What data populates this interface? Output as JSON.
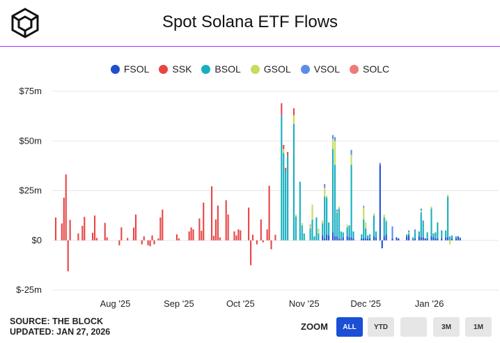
{
  "title": "Spot Solana ETF Flows",
  "logo_icon": "the-block-cube-logo",
  "legend": [
    {
      "name": "FSOL",
      "color": "#1f4fd0"
    },
    {
      "name": "SSK",
      "color": "#e84545"
    },
    {
      "name": "BSOL",
      "color": "#18aebf"
    },
    {
      "name": "GSOL",
      "color": "#c6dc5a"
    },
    {
      "name": "VSOL",
      "color": "#5b8de8"
    },
    {
      "name": "SOLC",
      "color": "#f07a7a"
    }
  ],
  "source": "SOURCE: THE BLOCK",
  "updated": "UPDATED: JAN 27, 2026",
  "zoom": {
    "label": "ZOOM",
    "buttons": [
      {
        "label": "ALL",
        "active": true
      },
      {
        "label": "YTD",
        "active": false
      },
      {
        "label": "",
        "active": false
      },
      {
        "label": "3M",
        "active": false
      },
      {
        "label": "1M",
        "active": false
      }
    ]
  },
  "chart_data": {
    "type": "bar",
    "stacked": true,
    "title": "Spot Solana ETF Flows",
    "ylabel": "",
    "ylim": [
      -25,
      75
    ],
    "yticks": [
      -25,
      0,
      25,
      50,
      75
    ],
    "ytick_labels": [
      "$-25m",
      "$0",
      "$25m",
      "$50m",
      "$75m"
    ],
    "x_start_day": 0,
    "x_end_day": 212,
    "x_ticks": [
      {
        "day": 29,
        "label": "Aug '25"
      },
      {
        "day": 60,
        "label": "Sep '25"
      },
      {
        "day": 90,
        "label": "Oct '25"
      },
      {
        "day": 121,
        "label": "Nov '25"
      },
      {
        "day": 151,
        "label": "Dec '25"
      },
      {
        "day": 182,
        "label": "Jan '26"
      }
    ],
    "series_names": [
      "FSOL",
      "SSK",
      "BSOL",
      "GSOL",
      "VSOL",
      "SOLC"
    ],
    "bars": [
      {
        "day": 0,
        "SSK": 11.5
      },
      {
        "day": 3,
        "SSK": 8.5
      },
      {
        "day": 4,
        "SSK": 21.5
      },
      {
        "day": 5,
        "SSK": 33.2
      },
      {
        "day": 6,
        "SSK": -15.6
      },
      {
        "day": 7,
        "SSK": 10.3
      },
      {
        "day": 11,
        "SSK": 3.5
      },
      {
        "day": 13,
        "SSK": 7.3
      },
      {
        "day": 14,
        "SSK": 11.8
      },
      {
        "day": 18,
        "SSK": 3.8
      },
      {
        "day": 19,
        "SSK": 12.5
      },
      {
        "day": 20,
        "SSK": 1.2
      },
      {
        "day": 24,
        "SSK": 8.8
      },
      {
        "day": 25,
        "SSK": 1.5
      },
      {
        "day": 31,
        "SSK": -2.5
      },
      {
        "day": 32,
        "SSK": 6.5
      },
      {
        "day": 35,
        "SSK": 1.2
      },
      {
        "day": 38,
        "SSK": 6.4
      },
      {
        "day": 39,
        "SSK": 13.0
      },
      {
        "day": 42,
        "SSK": -2.0
      },
      {
        "day": 43,
        "SSK": 2.0
      },
      {
        "day": 45,
        "SSK": -2.5
      },
      {
        "day": 46,
        "SSK": -3.0
      },
      {
        "day": 47,
        "SSK": 2.5
      },
      {
        "day": 48,
        "SSK": -2.0
      },
      {
        "day": 50,
        "SSK": 1.0
      },
      {
        "day": 51,
        "SSK": 11.5
      },
      {
        "day": 52,
        "SSK": 15.5
      },
      {
        "day": 59,
        "SSK": 3.0
      },
      {
        "day": 60,
        "SSK": 1.0
      },
      {
        "day": 65,
        "SSK": 4.5
      },
      {
        "day": 66,
        "SSK": 6.5
      },
      {
        "day": 67,
        "SSK": 5.5
      },
      {
        "day": 70,
        "SSK": 11.0
      },
      {
        "day": 71,
        "SSK": 4.8
      },
      {
        "day": 72,
        "SSK": 19.0
      },
      {
        "day": 76,
        "SSK": 27.2
      },
      {
        "day": 77,
        "SSK": 2.3
      },
      {
        "day": 78,
        "SSK": 10.5
      },
      {
        "day": 79,
        "SSK": 17.5
      },
      {
        "day": 80,
        "SSK": 1.5
      },
      {
        "day": 83,
        "SSK": 20.2
      },
      {
        "day": 84,
        "SSK": 13.0
      },
      {
        "day": 87,
        "SSK": 4.5
      },
      {
        "day": 88,
        "SSK": 2.5
      },
      {
        "day": 89,
        "SSK": 5.5
      },
      {
        "day": 90,
        "SSK": 5.0
      },
      {
        "day": 94,
        "SSK": 16.5
      },
      {
        "day": 95,
        "SSK": -12.5
      },
      {
        "day": 96,
        "SSK": 2.8
      },
      {
        "day": 98,
        "SSK": -2.0
      },
      {
        "day": 100,
        "SSK": 10.5
      },
      {
        "day": 101,
        "SSK": -1.0
      },
      {
        "day": 103,
        "SSK": 5.5
      },
      {
        "day": 104,
        "SSK": 27.5
      },
      {
        "day": 105,
        "SSK": -4.5
      },
      {
        "day": 107,
        "SSK": 2.8
      },
      {
        "day": 110,
        "SSK": 6.0,
        "BSOL": 63.0
      },
      {
        "day": 111,
        "SSK": 2.0,
        "BSOL": 44.0,
        "GSOL": 2.0
      },
      {
        "day": 112,
        "SSK": 1.5,
        "BSOL": 35.0
      },
      {
        "day": 113,
        "SSK": 2.0,
        "BSOL": 42.5
      },
      {
        "day": 116,
        "SSK": 3.5,
        "BSOL": 58.5,
        "GSOL": 4.5
      },
      {
        "day": 117,
        "BSOL": 12.0,
        "GSOL": 1.0
      },
      {
        "day": 119,
        "BSOL": 29.5
      },
      {
        "day": 120,
        "BSOL": 7.5,
        "GSOL": 1.2
      },
      {
        "day": 121,
        "BSOL": 3.5
      },
      {
        "day": 124,
        "BSOL": 6.0,
        "GSOL": 1.5,
        "SOLC": 0.5
      },
      {
        "day": 125,
        "BSOL": 10.5,
        "GSOL": 7.5
      },
      {
        "day": 126,
        "BSOL": 2.0
      },
      {
        "day": 127,
        "BSOL": 11.5
      },
      {
        "day": 128,
        "BSOL": 3.5,
        "GSOL": 2.5
      },
      {
        "day": 130,
        "FSOL": 2.5,
        "BSOL": 6.0,
        "GSOL": 1.5
      },
      {
        "day": 131,
        "FSOL": 1.0,
        "BSOL": 21.0,
        "GSOL": 4.5,
        "VSOL": 1.8
      },
      {
        "day": 132,
        "FSOL": 3.0,
        "BSOL": 18.5,
        "GSOL": 1.0
      },
      {
        "day": 133,
        "FSOL": 2.5,
        "BSOL": 6.5
      },
      {
        "day": 135,
        "FSOL": 4.0,
        "BSOL": 42.0,
        "GSOL": 5.0,
        "VSOL": 2.0
      },
      {
        "day": 136,
        "FSOL": 2.0,
        "BSOL": 36.0,
        "GSOL": 12.0,
        "VSOL": 2.0
      },
      {
        "day": 137,
        "FSOL": 2.0,
        "BSOL": 12.0,
        "GSOL": 0.5,
        "VSOL": 1.0
      },
      {
        "day": 138,
        "FSOL": 1.0,
        "BSOL": 15.0,
        "GSOL": 1.0
      },
      {
        "day": 139,
        "FSOL": 0.5,
        "BSOL": 4.0
      },
      {
        "day": 140,
        "FSOL": 1.5,
        "BSOL": 2.5
      },
      {
        "day": 142,
        "FSOL": 2.0,
        "BSOL": 4.5,
        "GSOL": 1.5
      },
      {
        "day": 143,
        "FSOL": 1.5,
        "BSOL": 6.0
      },
      {
        "day": 144,
        "FSOL": 1.5,
        "BSOL": 36.5,
        "GSOL": 5.0,
        "VSOL": 2.5
      },
      {
        "day": 145,
        "FSOL": 1.0,
        "BSOL": 3.5
      },
      {
        "day": 149,
        "FSOL": 1.0,
        "BSOL": 2.0
      },
      {
        "day": 150,
        "FSOL": 1.0,
        "BSOL": 9.5,
        "GSOL": 6.0,
        "VSOL": 0.8
      },
      {
        "day": 151,
        "FSOL": 1.0,
        "BSOL": 5.0,
        "GSOL": 3.0
      },
      {
        "day": 152,
        "FSOL": 1.0,
        "BSOL": 1.5
      },
      {
        "day": 153,
        "FSOL": 1.0,
        "BSOL": 2.0
      },
      {
        "day": 155,
        "FSOL": 2.0,
        "BSOL": 10.5,
        "GSOL": 1.0
      },
      {
        "day": 156,
        "FSOL": 1.5,
        "BSOL": 3.0
      },
      {
        "day": 158,
        "FSOL": 38.0,
        "VSOL": 1.0
      },
      {
        "day": 159,
        "FSOL": -4.0
      },
      {
        "day": 160,
        "FSOL": 2.0,
        "BSOL": 9.5,
        "GSOL": 1.5
      },
      {
        "day": 161,
        "FSOL": 3.0,
        "BSOL": 6.5,
        "GSOL": 1.0
      },
      {
        "day": 164,
        "FSOL": 1.0,
        "VSOL": 6.0
      },
      {
        "day": 166,
        "FSOL": 1.5
      },
      {
        "day": 167,
        "FSOL": 1.0
      },
      {
        "day": 171,
        "FSOL": 2.0,
        "BSOL": 1.0
      },
      {
        "day": 172,
        "FSOL": 2.5,
        "BSOL": 1.0,
        "GSOL": 0.5,
        "VSOL": 1.0
      },
      {
        "day": 174,
        "FSOL": 0.5,
        "BSOL": 1.0
      },
      {
        "day": 175,
        "FSOL": 1.0,
        "BSOL": 3.0,
        "VSOL": 1.5
      },
      {
        "day": 177,
        "FSOL": 2.0,
        "BSOL": 2.5
      },
      {
        "day": 178,
        "FSOL": 1.5,
        "BSOL": 12.5,
        "GSOL": 1.0,
        "VSOL": 1.0
      },
      {
        "day": 179,
        "FSOL": 1.5,
        "BSOL": 7.0,
        "VSOL": 1.5
      },
      {
        "day": 180,
        "FSOL": 1.0
      },
      {
        "day": 181,
        "FSOL": 1.0,
        "BSOL": 3.0
      },
      {
        "day": 183,
        "FSOL": 2.0,
        "BSOL": 14.0,
        "GSOL": 1.0
      },
      {
        "day": 184,
        "FSOL": 1.5,
        "BSOL": 2.0
      },
      {
        "day": 185,
        "FSOL": 1.0,
        "BSOL": 3.0
      },
      {
        "day": 186,
        "FSOL": 1.0,
        "BSOL": 8.0
      },
      {
        "day": 188,
        "FSOL": 1.0,
        "BSOL": 4.0
      },
      {
        "day": 190,
        "FSOL": 1.5,
        "BSOL": 3.5
      },
      {
        "day": 191,
        "FSOL": 1.5,
        "BSOL": 20.5,
        "GSOL": 1.0
      },
      {
        "day": 192,
        "BSOL": 2.0,
        "GSOL": -2.0
      },
      {
        "day": 193,
        "FSOL": 1.0,
        "BSOL": 1.5
      },
      {
        "day": 195,
        "FSOL": 1.0,
        "BSOL": 1.0
      },
      {
        "day": 196,
        "FSOL": 2.0
      },
      {
        "day": 197,
        "FSOL": 1.0,
        "BSOL": 0.5
      }
    ]
  }
}
